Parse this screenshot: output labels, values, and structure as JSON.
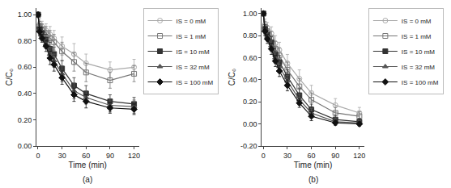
{
  "chart_data": [
    {
      "type": "line",
      "annotations": [
        "(a)"
      ],
      "xlabel": "Time (min)",
      "ylabel": "C/C₀",
      "x": [
        0,
        2,
        5,
        10,
        15,
        20,
        30,
        45,
        60,
        90,
        120
      ],
      "xlim": [
        -2,
        126
      ],
      "ylim": [
        0.0,
        1.05
      ],
      "xticks": [
        0,
        30,
        60,
        90,
        120
      ],
      "yticks": [
        {
          "value": 0.0,
          "label": "0.00"
        },
        {
          "value": 0.2,
          "label": "0.20"
        },
        {
          "value": 0.4,
          "label": "0.40"
        },
        {
          "value": 0.6,
          "label": "0.60"
        },
        {
          "value": 0.8,
          "label": "0.80"
        },
        {
          "value": 1.0,
          "label": "1.00"
        }
      ],
      "grid": false,
      "legend": "upper right",
      "series": [
        {
          "name": "IS = 0 mM",
          "color": "#aaaaaa",
          "marker": "circle-open",
          "values": [
            1.0,
            0.93,
            0.91,
            0.88,
            0.85,
            0.82,
            0.76,
            0.7,
            0.63,
            0.58,
            0.6
          ],
          "errors": [
            0.0,
            0.04,
            0.04,
            0.05,
            0.06,
            0.06,
            0.07,
            0.08,
            0.07,
            0.06,
            0.06
          ]
        },
        {
          "name": "IS = 1 mM",
          "color": "#777777",
          "marker": "square-open",
          "values": [
            1.0,
            0.91,
            0.89,
            0.86,
            0.82,
            0.79,
            0.72,
            0.64,
            0.56,
            0.5,
            0.55
          ],
          "errors": [
            0.0,
            0.04,
            0.04,
            0.05,
            0.06,
            0.06,
            0.07,
            0.07,
            0.07,
            0.06,
            0.06
          ]
        },
        {
          "name": "IS = 10 mM",
          "color": "#333333",
          "marker": "square",
          "values": [
            1.0,
            0.89,
            0.86,
            0.81,
            0.74,
            0.7,
            0.59,
            0.46,
            0.4,
            0.34,
            0.32
          ],
          "errors": [
            0.0,
            0.04,
            0.04,
            0.04,
            0.05,
            0.05,
            0.06,
            0.06,
            0.06,
            0.05,
            0.05
          ]
        },
        {
          "name": "IS = 32 mM",
          "color": "#555555",
          "marker": "triangle-up",
          "values": [
            1.0,
            0.88,
            0.84,
            0.78,
            0.7,
            0.65,
            0.55,
            0.42,
            0.37,
            0.31,
            0.3
          ],
          "errors": [
            0.0,
            0.04,
            0.04,
            0.04,
            0.05,
            0.05,
            0.06,
            0.06,
            0.05,
            0.05,
            0.05
          ]
        },
        {
          "name": "IS = 100 mM",
          "color": "#111111",
          "marker": "diamond",
          "values": [
            1.0,
            0.87,
            0.82,
            0.76,
            0.67,
            0.62,
            0.52,
            0.39,
            0.34,
            0.29,
            0.28
          ],
          "errors": [
            0.0,
            0.03,
            0.03,
            0.04,
            0.05,
            0.05,
            0.05,
            0.05,
            0.05,
            0.04,
            0.04
          ]
        }
      ]
    },
    {
      "type": "line",
      "annotations": [
        "(b)"
      ],
      "xlabel": "Time (min)",
      "ylabel": "C/C₀",
      "x": [
        0,
        2,
        5,
        10,
        15,
        20,
        30,
        45,
        60,
        90,
        120
      ],
      "xlim": [
        -2,
        126
      ],
      "ylim": [
        -0.2,
        1.05
      ],
      "xticks": [
        0,
        30,
        60,
        90,
        120
      ],
      "yticks": [
        {
          "value": -0.2,
          "label": "-0.20"
        },
        {
          "value": 0.0,
          "label": "0.00"
        },
        {
          "value": 0.2,
          "label": "0.20"
        },
        {
          "value": 0.4,
          "label": "0.40"
        },
        {
          "value": 0.6,
          "label": "0.60"
        },
        {
          "value": 0.8,
          "label": "0.80"
        },
        {
          "value": 1.0,
          "label": "1.00"
        }
      ],
      "grid": false,
      "legend": "upper right",
      "series": [
        {
          "name": "IS = 0 mM",
          "color": "#aaaaaa",
          "marker": "circle-open",
          "values": [
            1.0,
            0.9,
            0.87,
            0.82,
            0.73,
            0.67,
            0.55,
            0.41,
            0.28,
            0.17,
            0.1
          ],
          "errors": [
            0.0,
            0.05,
            0.05,
            0.06,
            0.07,
            0.07,
            0.08,
            0.08,
            0.07,
            0.06,
            0.05
          ]
        },
        {
          "name": "IS = 1 mM",
          "color": "#777777",
          "marker": "square-open",
          "values": [
            1.0,
            0.88,
            0.84,
            0.78,
            0.68,
            0.62,
            0.49,
            0.34,
            0.22,
            0.1,
            0.07
          ],
          "errors": [
            0.0,
            0.05,
            0.05,
            0.06,
            0.07,
            0.07,
            0.07,
            0.07,
            0.06,
            0.05,
            0.04
          ]
        },
        {
          "name": "IS = 10 mM",
          "color": "#333333",
          "marker": "square",
          "values": [
            1.0,
            0.86,
            0.81,
            0.74,
            0.63,
            0.56,
            0.43,
            0.26,
            0.13,
            0.04,
            0.02
          ],
          "errors": [
            0.0,
            0.04,
            0.04,
            0.05,
            0.06,
            0.06,
            0.06,
            0.06,
            0.05,
            0.04,
            0.03
          ]
        },
        {
          "name": "IS = 32 mM",
          "color": "#555555",
          "marker": "triangle-up",
          "values": [
            1.0,
            0.85,
            0.79,
            0.71,
            0.6,
            0.52,
            0.39,
            0.22,
            0.1,
            0.02,
            0.01
          ],
          "errors": [
            0.0,
            0.04,
            0.04,
            0.05,
            0.05,
            0.05,
            0.05,
            0.05,
            0.04,
            0.03,
            0.02
          ]
        },
        {
          "name": "IS = 100 mM",
          "color": "#111111",
          "marker": "diamond",
          "values": [
            1.0,
            0.84,
            0.77,
            0.68,
            0.57,
            0.48,
            0.35,
            0.19,
            0.07,
            0.01,
            0.0
          ],
          "errors": [
            0.0,
            0.04,
            0.04,
            0.05,
            0.05,
            0.05,
            0.05,
            0.04,
            0.04,
            0.02,
            0.02
          ]
        }
      ]
    }
  ]
}
